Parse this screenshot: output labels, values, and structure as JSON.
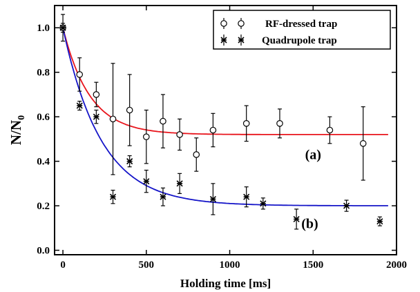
{
  "chart_data": {
    "type": "scatter",
    "xlabel": "Holding time [ms]",
    "ylabel": "N/N",
    "ylabel_sub": "0",
    "xlim": [
      -50,
      2000
    ],
    "ylim": [
      -0.02,
      1.1
    ],
    "xticks": [
      0,
      500,
      1000,
      1500,
      2000
    ],
    "yticks": [
      0.0,
      0.2,
      0.4,
      0.6,
      0.8,
      1.0
    ],
    "ytick_labels": [
      "0.0",
      "0.2",
      "0.4",
      "0.6",
      "0.8",
      "1.0"
    ],
    "grid": false,
    "legend_position": "top-right",
    "series": [
      {
        "name": "RF-dressed trap",
        "marker": "circle",
        "points": [
          {
            "x": 0,
            "y": 1.0,
            "err": 0.06
          },
          {
            "x": 100,
            "y": 0.79,
            "err": 0.075
          },
          {
            "x": 200,
            "y": 0.7,
            "err": 0.055
          },
          {
            "x": 300,
            "y": 0.59,
            "err": 0.25
          },
          {
            "x": 400,
            "y": 0.63,
            "err": 0.16
          },
          {
            "x": 500,
            "y": 0.51,
            "err": 0.12
          },
          {
            "x": 600,
            "y": 0.58,
            "err": 0.12
          },
          {
            "x": 700,
            "y": 0.52,
            "err": 0.07
          },
          {
            "x": 800,
            "y": 0.43,
            "err": 0.075
          },
          {
            "x": 900,
            "y": 0.54,
            "err": 0.075
          },
          {
            "x": 1100,
            "y": 0.57,
            "err": 0.08
          },
          {
            "x": 1300,
            "y": 0.57,
            "err": 0.065
          },
          {
            "x": 1600,
            "y": 0.54,
            "err": 0.06
          },
          {
            "x": 1800,
            "y": 0.48,
            "err": 0.165
          }
        ]
      },
      {
        "name": "Quadrupole trap",
        "marker": "asterisk",
        "points": [
          {
            "x": 0,
            "y": 1.0,
            "err": 0.02
          },
          {
            "x": 100,
            "y": 0.65,
            "err": 0.02
          },
          {
            "x": 200,
            "y": 0.6,
            "err": 0.03
          },
          {
            "x": 300,
            "y": 0.24,
            "err": 0.03
          },
          {
            "x": 400,
            "y": 0.4,
            "err": 0.025
          },
          {
            "x": 500,
            "y": 0.31,
            "err": 0.05
          },
          {
            "x": 600,
            "y": 0.24,
            "err": 0.04
          },
          {
            "x": 700,
            "y": 0.3,
            "err": 0.045
          },
          {
            "x": 900,
            "y": 0.23,
            "err": 0.07
          },
          {
            "x": 1100,
            "y": 0.24,
            "err": 0.045
          },
          {
            "x": 1200,
            "y": 0.21,
            "err": 0.025
          },
          {
            "x": 1400,
            "y": 0.14,
            "err": 0.045
          },
          {
            "x": 1700,
            "y": 0.2,
            "err": 0.025
          },
          {
            "x": 1900,
            "y": 0.13,
            "err": 0.02
          }
        ]
      }
    ],
    "fits": [
      {
        "color": "#e8141c",
        "y_inf": 0.52,
        "y0": 1.0,
        "tau": 160
      },
      {
        "color": "#1414c8",
        "y_inf": 0.2,
        "y0": 1.0,
        "tau": 230
      }
    ],
    "annotations": [
      {
        "text": "(a)",
        "x": 1500,
        "y": 0.41
      },
      {
        "text": "(b)",
        "x": 1480,
        "y": 0.1
      }
    ]
  }
}
